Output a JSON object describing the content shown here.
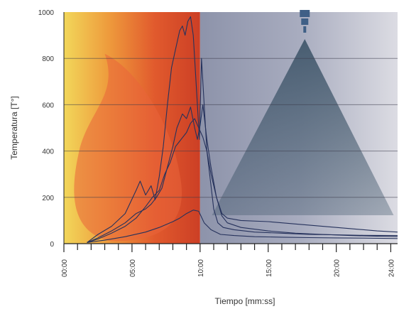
{
  "chart_data": {
    "type": "line",
    "title": "",
    "xlabel": "Tiempo [mm:ss]",
    "ylabel": "Temperatura [T°]",
    "xlim": [
      0,
      24.5
    ],
    "ylim": [
      0,
      1000
    ],
    "x_unit": "minutes",
    "x_ticks": [
      0,
      5,
      10,
      15,
      20,
      24
    ],
    "x_tick_labels": [
      "00:00",
      "05:00",
      "10:00",
      "15:00",
      "20:00",
      "24:00"
    ],
    "y_ticks": [
      0,
      200,
      400,
      600,
      800,
      1000
    ],
    "y_tick_labels": [
      "0",
      "200",
      "400",
      "600",
      "800",
      "1000"
    ],
    "grid": "horizontal",
    "legend": "none",
    "colors": {
      "fire_gradient": [
        "#f2d75a",
        "#ee9a3c",
        "#e15a2d",
        "#cc3f25"
      ],
      "flame_shape": "#e9653a",
      "suppression_gradient": [
        "#8d93aa",
        "#a8acbf",
        "#dcdce3"
      ],
      "spray_cone": "#3d5468",
      "nozzle": "#3f5f86",
      "line": "#26325c"
    },
    "phases": [
      {
        "name": "fire",
        "x_start": 0,
        "x_end": 10
      },
      {
        "name": "suppression",
        "x_start": 10,
        "x_end": 24.5
      }
    ],
    "series": [
      {
        "x": [
          1.7,
          2.5,
          3.5,
          4.5,
          5.3,
          5.6,
          6,
          6.4,
          6.7,
          7,
          7.3,
          7.6,
          7.9,
          8.2,
          8.5,
          8.7,
          8.9,
          9.1,
          9.3,
          9.5,
          9.7,
          9.85,
          9.95,
          10.1,
          10.3,
          10.5,
          10.8,
          11,
          11.3,
          11.7,
          12.5,
          14,
          16,
          18,
          20,
          22,
          24.5
        ],
        "values": [
          5,
          40,
          75,
          130,
          230,
          270,
          210,
          250,
          190,
          290,
          420,
          600,
          760,
          840,
          920,
          940,
          900,
          960,
          980,
          900,
          700,
          550,
          450,
          800,
          600,
          400,
          250,
          150,
          90,
          70,
          60,
          50,
          45,
          40,
          38,
          36,
          35
        ]
      },
      {
        "x": [
          1.7,
          2.5,
          3.5,
          4.5,
          5.3,
          6,
          6.4,
          6.8,
          7.2,
          7.6,
          8,
          8.3,
          8.7,
          9,
          9.3,
          9.6,
          9.8,
          10,
          10.2,
          10.5,
          10.8,
          11.2,
          11.6,
          12,
          13,
          15,
          17,
          19,
          21,
          23,
          24.5
        ],
        "values": [
          5,
          25,
          55,
          90,
          130,
          150,
          170,
          200,
          240,
          330,
          420,
          500,
          560,
          540,
          590,
          500,
          450,
          510,
          600,
          450,
          330,
          200,
          130,
          110,
          100,
          95,
          85,
          75,
          65,
          55,
          50
        ]
      },
      {
        "x": [
          1.7,
          2.5,
          3.5,
          4.5,
          5.3,
          6,
          6.5,
          7,
          7.4,
          7.8,
          8.2,
          8.6,
          9,
          9.3,
          9.6,
          9.9,
          10.2,
          10.5,
          10.8,
          11.2,
          11.6,
          12,
          13,
          15,
          17,
          19,
          21,
          23,
          24.5
        ],
        "values": [
          5,
          20,
          45,
          75,
          110,
          160,
          200,
          230,
          300,
          350,
          420,
          450,
          480,
          520,
          540,
          500,
          460,
          400,
          300,
          200,
          120,
          90,
          70,
          55,
          45,
          40,
          35,
          32,
          30
        ]
      },
      {
        "x": [
          1.7,
          3,
          4.5,
          6,
          7,
          8,
          8.5,
          9,
          9.5,
          9.9,
          10.3,
          10.8,
          11.5,
          12.5,
          14,
          16,
          18,
          20,
          22,
          24.5
        ],
        "values": [
          5,
          15,
          30,
          50,
          70,
          95,
          110,
          130,
          145,
          140,
          90,
          60,
          40,
          35,
          30,
          28,
          26,
          25,
          24,
          22
        ]
      }
    ]
  }
}
